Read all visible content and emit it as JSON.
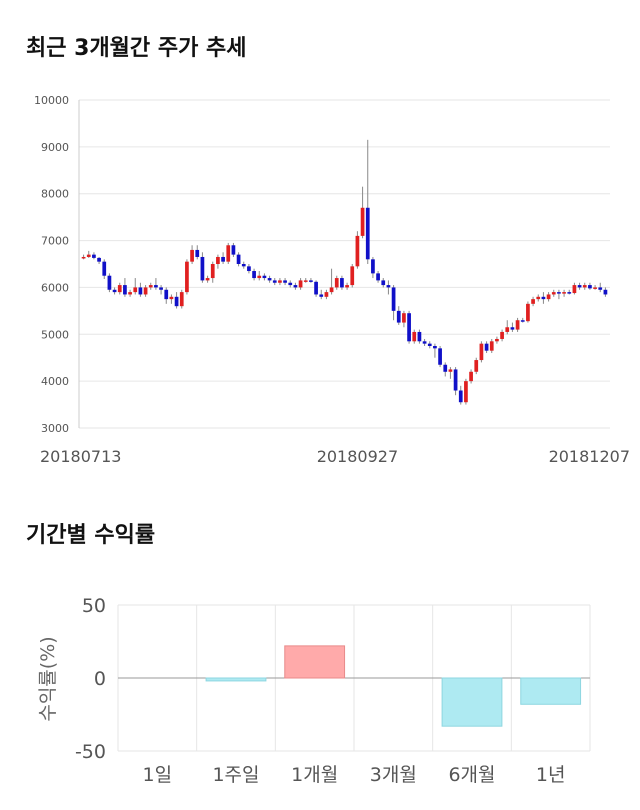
{
  "sections": {
    "price_title": "최근 3개월간 주가 추세",
    "return_title": "기간별 수익률"
  },
  "chart_data": [
    {
      "type": "candlestick",
      "title": "최근 3개월간 주가 추세",
      "ylim": [
        3000,
        10000
      ],
      "y_ticks": [
        "10000",
        "9000",
        "8000",
        "7000",
        "6000",
        "5000",
        "4000",
        "3000"
      ],
      "x_tick_labels": [
        "20180713",
        "20180927",
        "20181207"
      ],
      "x_tick_index": [
        0,
        53,
        100
      ],
      "grid": true,
      "colors": {
        "up": "#e02020",
        "down": "#1010c8",
        "wick": "#888888"
      },
      "candles": [
        [
          6650,
          6700,
          6600,
          6650
        ],
        [
          6650,
          6780,
          6630,
          6700
        ],
        [
          6700,
          6750,
          6600,
          6630
        ],
        [
          6630,
          6650,
          6500,
          6550
        ],
        [
          6550,
          6600,
          6180,
          6250
        ],
        [
          6250,
          6300,
          5900,
          5950
        ],
        [
          5950,
          6000,
          5850,
          5900
        ],
        [
          5900,
          6100,
          5850,
          6050
        ],
        [
          6050,
          6200,
          5800,
          5850
        ],
        [
          5850,
          5950,
          5800,
          5900
        ],
        [
          5900,
          6200,
          5850,
          6000
        ],
        [
          6000,
          6100,
          5800,
          5850
        ],
        [
          5850,
          6050,
          5800,
          6000
        ],
        [
          6000,
          6100,
          5950,
          6050
        ],
        [
          6050,
          6200,
          5950,
          6000
        ],
        [
          6000,
          6050,
          5850,
          5950
        ],
        [
          5950,
          6000,
          5650,
          5750
        ],
        [
          5750,
          5850,
          5650,
          5800
        ],
        [
          5800,
          5900,
          5550,
          5600
        ],
        [
          5600,
          5950,
          5550,
          5900
        ],
        [
          5900,
          6600,
          5850,
          6550
        ],
        [
          6550,
          6900,
          6500,
          6800
        ],
        [
          6800,
          6900,
          6600,
          6650
        ],
        [
          6650,
          6750,
          6100,
          6150
        ],
        [
          6150,
          6250,
          6100,
          6200
        ],
        [
          6200,
          6550,
          6100,
          6500
        ],
        [
          6500,
          6700,
          6400,
          6650
        ],
        [
          6650,
          6750,
          6500,
          6550
        ],
        [
          6550,
          6950,
          6500,
          6900
        ],
        [
          6900,
          6950,
          6650,
          6700
        ],
        [
          6700,
          6750,
          6450,
          6500
        ],
        [
          6500,
          6550,
          6400,
          6450
        ],
        [
          6450,
          6500,
          6300,
          6350
        ],
        [
          6350,
          6400,
          6150,
          6200
        ],
        [
          6200,
          6350,
          6150,
          6250
        ],
        [
          6250,
          6300,
          6150,
          6200
        ],
        [
          6200,
          6250,
          6100,
          6150
        ],
        [
          6150,
          6200,
          6050,
          6100
        ],
        [
          6100,
          6200,
          6050,
          6150
        ],
        [
          6150,
          6200,
          6050,
          6100
        ],
        [
          6100,
          6150,
          6000,
          6050
        ],
        [
          6050,
          6100,
          5950,
          6000
        ],
        [
          6000,
          6200,
          5950,
          6150
        ],
        [
          6150,
          6200,
          6100,
          6150
        ],
        [
          6150,
          6200,
          6100,
          6120
        ],
        [
          6120,
          6150,
          5800,
          5850
        ],
        [
          5850,
          5950,
          5750,
          5800
        ],
        [
          5800,
          5950,
          5750,
          5900
        ],
        [
          5900,
          6400,
          5850,
          6000
        ],
        [
          6000,
          6250,
          5950,
          6200
        ],
        [
          6200,
          6250,
          5950,
          6000
        ],
        [
          6000,
          6100,
          5950,
          6050
        ],
        [
          6050,
          6500,
          6000,
          6450
        ],
        [
          6450,
          7200,
          6400,
          7100
        ],
        [
          7100,
          8150,
          7050,
          7700
        ],
        [
          7700,
          9150,
          6500,
          6600
        ],
        [
          6600,
          6650,
          6200,
          6300
        ],
        [
          6300,
          6350,
          6100,
          6150
        ],
        [
          6150,
          6200,
          6000,
          6050
        ],
        [
          6050,
          6150,
          5850,
          6000
        ],
        [
          6000,
          6050,
          5300,
          5500
        ],
        [
          5500,
          5600,
          5200,
          5250
        ],
        [
          5250,
          5500,
          5150,
          5450
        ],
        [
          5450,
          5500,
          4800,
          4850
        ],
        [
          4850,
          5100,
          4800,
          5050
        ],
        [
          5050,
          5100,
          4800,
          4850
        ],
        [
          4850,
          4900,
          4750,
          4800
        ],
        [
          4800,
          4850,
          4700,
          4750
        ],
        [
          4750,
          4800,
          4500,
          4700
        ],
        [
          4700,
          4750,
          4300,
          4350
        ],
        [
          4350,
          4400,
          4100,
          4200
        ],
        [
          4200,
          4300,
          4050,
          4250
        ],
        [
          4250,
          4300,
          3700,
          3800
        ],
        [
          3800,
          3900,
          3500,
          3550
        ],
        [
          3550,
          4050,
          3500,
          4000
        ],
        [
          4000,
          4250,
          3950,
          4200
        ],
        [
          4200,
          4500,
          4150,
          4450
        ],
        [
          4450,
          4850,
          4400,
          4800
        ],
        [
          4800,
          4850,
          4600,
          4650
        ],
        [
          4650,
          4900,
          4600,
          4850
        ],
        [
          4850,
          4950,
          4800,
          4900
        ],
        [
          4900,
          5100,
          4850,
          5050
        ],
        [
          5050,
          5300,
          5000,
          5150
        ],
        [
          5150,
          5250,
          5050,
          5100
        ],
        [
          5100,
          5350,
          5050,
          5300
        ],
        [
          5300,
          5350,
          5250,
          5280
        ],
        [
          5280,
          5700,
          5250,
          5650
        ],
        [
          5650,
          5800,
          5600,
          5750
        ],
        [
          5750,
          5850,
          5700,
          5800
        ],
        [
          5800,
          5900,
          5650,
          5750
        ],
        [
          5750,
          5900,
          5700,
          5850
        ],
        [
          5850,
          5950,
          5800,
          5900
        ],
        [
          5900,
          5950,
          5750,
          5880
        ],
        [
          5880,
          5950,
          5800,
          5900
        ],
        [
          5900,
          5950,
          5850,
          5880
        ],
        [
          5880,
          6100,
          5850,
          6050
        ],
        [
          6050,
          6100,
          5950,
          6000
        ],
        [
          6000,
          6100,
          5950,
          6050
        ],
        [
          6050,
          6100,
          5950,
          5980
        ],
        [
          5980,
          6050,
          5950,
          6000
        ],
        [
          6000,
          6100,
          5900,
          5950
        ],
        [
          5950,
          6000,
          5800,
          5850
        ]
      ]
    },
    {
      "type": "bar",
      "title": "기간별 수익률",
      "ylabel": "수익률(%)",
      "ylim": [
        -50,
        50
      ],
      "y_ticks": [
        50,
        0,
        -50
      ],
      "categories": [
        "1일",
        "1주일",
        "1개월",
        "3개월",
        "6개월",
        "1년"
      ],
      "values": [
        0,
        -2,
        22,
        0,
        -33,
        -18
      ],
      "grid": true,
      "colors": {
        "positive": "#ffaaaa",
        "positive_edge": "#e88a8a",
        "negative": "#aeeaf2",
        "negative_edge": "#8ed6e0"
      }
    }
  ]
}
